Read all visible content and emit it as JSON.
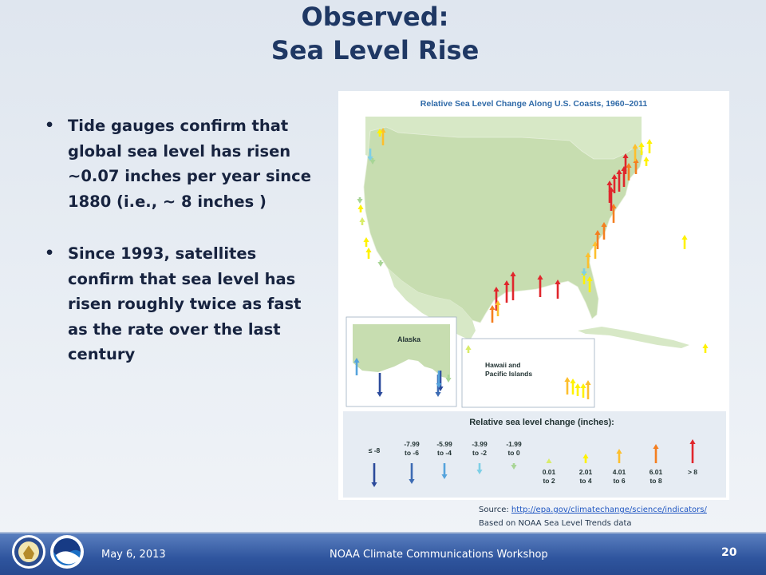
{
  "slide": {
    "title_line1": "Observed:",
    "title_line2": "Sea Level Rise",
    "bullets": [
      "Tide gauges confirm that global sea level has risen ~0.07 inches per year since 1880 (i.e., ~ 8 inches )",
      "Since 1993, satellites confirm that sea level has risen roughly twice as fast as the rate over the last century"
    ]
  },
  "map": {
    "title": "Relative Sea Level Change Along U.S. Coasts, 1960–2011",
    "alaska_label": "Alaska",
    "hawaii_label_line1": "Hawaii and",
    "hawaii_label_line2": "Pacific Islands",
    "legend_title": "Relative sea level change (inches):",
    "legend_items": [
      {
        "line1": "≤ -8",
        "line2": "",
        "color": "#2b4a9b"
      },
      {
        "line1": "-7.99",
        "line2": "to -6",
        "color": "#3c6bb3"
      },
      {
        "line1": "-5.99",
        "line2": "to -4",
        "color": "#55a3dc"
      },
      {
        "line1": "-3.99",
        "line2": "to -2",
        "color": "#7ecfe6"
      },
      {
        "line1": "-1.99",
        "line2": "to 0",
        "color": "#a8d596"
      },
      {
        "line1": "0.01",
        "line2": "to 2",
        "color": "#d9ec6a"
      },
      {
        "line1": "2.01",
        "line2": "to 4",
        "color": "#fff200"
      },
      {
        "line1": "4.01",
        "line2": "to 6",
        "color": "#fdbf2d"
      },
      {
        "line1": "6.01",
        "line2": "to 8",
        "color": "#f47f20"
      },
      {
        "line1": "> 8",
        "line2": "",
        "color": "#e0262c"
      }
    ]
  },
  "source": {
    "prefix": "Source: ",
    "url": "http://epa.gov/climatechange/science/indicators/",
    "note": "Based on NOAA Sea Level Trends data"
  },
  "footer": {
    "date": "May 6, 2013",
    "event": "NOAA Climate Communications Workshop",
    "page": "20"
  },
  "colors": {
    "title": "#1f3864",
    "footer_bar": "#2f559e",
    "land": "#c7ddb0",
    "ocean": "#ffffff"
  }
}
